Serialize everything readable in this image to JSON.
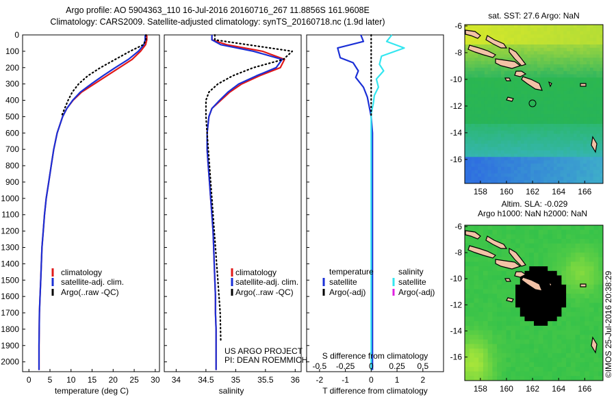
{
  "title": {
    "line1": "Argo profile: AO 5904363_110 16-Jul-2016 20160716_267 11.8856S 161.9608E",
    "line2": "Climatology: CARS2009. Satellite-adjusted climatology: synTS_20160718.nc (1.9d later)"
  },
  "credits": {
    "project": "US ARGO PROJECT",
    "pi": "PI: DEAN ROEMMICH",
    "stamp": "©IMOS 25-Jul-2016 20:38:29"
  },
  "colors": {
    "climatology": "#e01818",
    "satellite": "#1a2fd6",
    "argo": "#000000",
    "satellite_salinity": "#33e6f0",
    "argo_salinity_adj": "#e020e0",
    "land": "#f2c2a6"
  },
  "chart_data": [
    {
      "type": "line",
      "xlabel": "temperature (deg C)",
      "ylabel": "",
      "xlim": [
        -1.5,
        31
      ],
      "ylim": [
        2060,
        0
      ],
      "xticks": [
        0,
        5,
        10,
        15,
        20,
        25,
        30
      ],
      "yticks": [
        0,
        100,
        200,
        300,
        400,
        500,
        600,
        700,
        800,
        900,
        1000,
        1100,
        1200,
        1300,
        1400,
        1500,
        1600,
        1700,
        1800,
        1900,
        2000
      ],
      "legend": [
        "climatology",
        "satellite-adj. clim.",
        "Argo(..raw -QC)"
      ],
      "series": [
        {
          "name": "climatology",
          "color": "#e01818",
          "style": "solid",
          "x": [
            28.0,
            28.0,
            27.7,
            26.5,
            24.5,
            21.5,
            18.5,
            15.5,
            12.5,
            10.5,
            9.0,
            8.0,
            6.7,
            5.9,
            5.3,
            4.7,
            4.1,
            3.7,
            3.4,
            3.1,
            2.95,
            2.8,
            2.65,
            2.5,
            2.45,
            2.4,
            2.4
          ],
          "y": [
            0,
            30,
            60,
            100,
            150,
            200,
            250,
            300,
            350,
            400,
            450,
            500,
            600,
            700,
            800,
            900,
            1000,
            1100,
            1200,
            1300,
            1400,
            1500,
            1600,
            1700,
            1800,
            1900,
            2050
          ]
        },
        {
          "name": "satellite-adj. clim.",
          "color": "#1a2fd6",
          "style": "solid",
          "x": [
            27.6,
            27.6,
            27.3,
            26.0,
            23.6,
            20.5,
            17.6,
            14.8,
            12.2,
            10.4,
            9.0,
            8.0,
            6.7,
            5.9,
            5.3,
            4.7,
            4.1,
            3.7,
            3.4,
            3.1,
            2.95,
            2.8,
            2.65,
            2.5,
            2.45,
            2.4,
            2.4
          ],
          "y": [
            0,
            30,
            60,
            100,
            150,
            200,
            250,
            300,
            350,
            400,
            450,
            500,
            600,
            700,
            800,
            900,
            1000,
            1100,
            1200,
            1300,
            1400,
            1500,
            1600,
            1700,
            1800,
            1900,
            2050
          ]
        },
        {
          "name": "Argo(..raw -QC)",
          "color": "#000000",
          "style": "dotted",
          "x": [
            27.8,
            27.8,
            27.2,
            24.0,
            20.5,
            17.0,
            14.0,
            11.8,
            10.3,
            9.3,
            8.5,
            7.7
          ],
          "y": [
            0,
            30,
            60,
            100,
            150,
            200,
            250,
            300,
            350,
            400,
            450,
            500
          ]
        }
      ]
    },
    {
      "type": "line",
      "xlabel": "salinity",
      "ylabel": "",
      "xlim": [
        33.8,
        36.1
      ],
      "ylim": [
        2060,
        0
      ],
      "xticks": [
        34,
        34.5,
        35,
        35.5,
        36
      ],
      "legend": [
        "climatology",
        "satellite-adj. clim.",
        "Argo(..raw -QC)"
      ],
      "series": [
        {
          "name": "climatology",
          "color": "#e01818",
          "style": "solid",
          "x": [
            34.6,
            34.6,
            34.85,
            35.45,
            35.82,
            35.75,
            35.4,
            35.1,
            34.9,
            34.75,
            34.6,
            34.55,
            34.52,
            34.52,
            34.54,
            34.56,
            34.58,
            34.6,
            34.62,
            34.63,
            34.64,
            34.65,
            34.66,
            34.66,
            34.67,
            34.67,
            34.67
          ],
          "y": [
            0,
            30,
            60,
            100,
            150,
            200,
            250,
            300,
            350,
            400,
            450,
            500,
            600,
            700,
            800,
            900,
            1000,
            1100,
            1200,
            1300,
            1400,
            1500,
            1600,
            1700,
            1800,
            1900,
            2050
          ]
        },
        {
          "name": "satellite-adj. clim.",
          "color": "#1a2fd6",
          "style": "solid",
          "x": [
            34.6,
            34.6,
            34.75,
            35.3,
            35.78,
            35.68,
            35.35,
            35.05,
            34.87,
            34.73,
            34.6,
            34.55,
            34.52,
            34.52,
            34.54,
            34.56,
            34.58,
            34.6,
            34.62,
            34.63,
            34.64,
            34.65,
            34.66,
            34.66,
            34.67,
            34.67,
            34.67
          ],
          "y": [
            0,
            30,
            60,
            100,
            150,
            200,
            250,
            300,
            350,
            400,
            450,
            500,
            600,
            700,
            800,
            900,
            1000,
            1100,
            1200,
            1300,
            1400,
            1500,
            1600,
            1700,
            1800,
            1900,
            2050
          ]
        },
        {
          "name": "Argo(..raw -QC)",
          "color": "#000000",
          "style": "dotted",
          "x": [
            34.65,
            34.65,
            35.2,
            35.95,
            35.8,
            35.3,
            34.95,
            34.7,
            34.55,
            34.5,
            34.5,
            34.52,
            34.54,
            34.56,
            34.58,
            34.6,
            34.62,
            34.64,
            34.66,
            34.68,
            34.7,
            34.72,
            34.74,
            34.75
          ],
          "y": [
            0,
            30,
            60,
            100,
            150,
            200,
            250,
            300,
            350,
            400,
            500,
            600,
            700,
            800,
            900,
            1000,
            1100,
            1200,
            1300,
            1400,
            1500,
            1600,
            1700,
            1880
          ]
        }
      ]
    },
    {
      "type": "line",
      "xlabel": "T difference from climatology",
      "x2label": "S difference from climatology",
      "xlim": [
        -2.5,
        2.8
      ],
      "x2lim": [
        -0.625,
        0.7
      ],
      "ylim": [
        2060,
        0
      ],
      "xticks": [
        -2,
        -1,
        0,
        1,
        2
      ],
      "x2ticks": [
        -0.5,
        -0.25,
        0,
        0.25,
        0.5
      ],
      "legend_groups": [
        {
          "title": "temperature",
          "entries": [
            "satellite",
            "Argo(-adj)"
          ]
        },
        {
          "title": "salinity",
          "entries": [
            "satellite",
            "Argo(-adj)"
          ]
        }
      ],
      "series": [
        {
          "name": "temperature satellite",
          "color": "#1a2fd6",
          "style": "solid",
          "axis": "T",
          "x": [
            -0.4,
            -0.3,
            -1.3,
            -1.2,
            -0.7,
            -0.5,
            -0.6,
            -0.3,
            -0.15,
            -0.1,
            0.0,
            0.05,
            0.05,
            0.05,
            0.05,
            0.05,
            0.05,
            0.05,
            0.05
          ],
          "y": [
            0,
            40,
            80,
            140,
            170,
            220,
            260,
            320,
            380,
            420,
            500,
            600,
            700,
            900,
            1100,
            1300,
            1500,
            1700,
            2050
          ]
        },
        {
          "name": "salinity satellite",
          "color": "#33e6f0",
          "style": "solid",
          "axis": "S",
          "x": [
            0.2,
            0.15,
            0.32,
            0.1,
            0.08,
            0.12,
            0.05,
            0.07,
            0.03,
            0.02,
            0.0,
            0.0,
            0.0,
            0.0,
            0.0,
            0.0
          ],
          "y": [
            0,
            40,
            80,
            130,
            180,
            220,
            270,
            320,
            370,
            420,
            480,
            600,
            800,
            1200,
            1600,
            2050
          ]
        },
        {
          "name": "zero reference",
          "color": "#000000",
          "style": "dotted",
          "axis": "T",
          "x": [
            0,
            0
          ],
          "y": [
            0,
            500
          ]
        }
      ]
    }
  ],
  "maps": [
    {
      "title": "sat. SST: 27.6 Argo: NaN",
      "xticks": [
        "158",
        "160",
        "162",
        "164",
        "166"
      ],
      "yticks": [
        "-6",
        "-8",
        "-10",
        "-12",
        "-14",
        "-16"
      ],
      "extent": {
        "lon": [
          156.8,
          167.4
        ],
        "lat": [
          -17.8,
          -5.9
        ]
      },
      "float_position": {
        "lon": 161.96,
        "lat": -11.89
      }
    },
    {
      "title_line1": "Altim. SLA: -0.029",
      "title_line2": "Argo h1000: NaN h2000: NaN",
      "xticks": [
        "158",
        "160",
        "162",
        "164",
        "166"
      ],
      "yticks": [
        "-6",
        "-8",
        "-10",
        "-12",
        "-14",
        "-16"
      ],
      "extent": {
        "lon": [
          156.8,
          167.4
        ],
        "lat": [
          -17.8,
          -5.9
        ]
      },
      "float_position": {
        "lon": 161.96,
        "lat": -11.89
      }
    }
  ]
}
